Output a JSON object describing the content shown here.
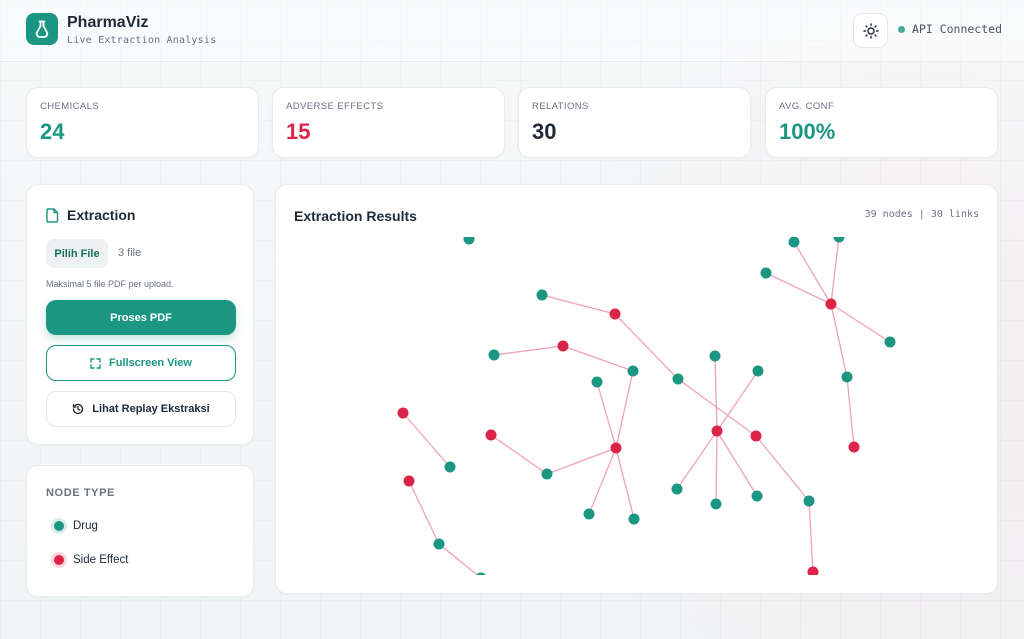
{
  "header": {
    "app_name": "PharmaViz",
    "subtitle": "Live Extraction Analysis",
    "api_status": "API Connected",
    "theme_icon": "sun-icon",
    "logo_icon": "flask-icon"
  },
  "stats": [
    {
      "label": "CHEMICALS",
      "value": "24",
      "color": "#1a9683"
    },
    {
      "label": "ADVERSE EFFECTS",
      "value": "15",
      "color": "#dc2348"
    },
    {
      "label": "RELATIONS",
      "value": "30",
      "color": "#1f2937"
    },
    {
      "label": "AVG. CONF",
      "value": "100%",
      "color": "#1a9683"
    }
  ],
  "extraction": {
    "title": "Extraction",
    "title_icon": "file-icon",
    "choose_file_label": "Pilih File",
    "file_count": "3 file",
    "hint": "Maksimal 5 file PDF per upload.",
    "process_label": "Proses PDF",
    "fullscreen_label": "Fullscreen View",
    "fullscreen_icon": "expand-icon",
    "replay_label": "Lihat Replay Ekstraksi",
    "replay_icon": "history-icon"
  },
  "legend": {
    "title": "NODE TYPE",
    "items": [
      {
        "label": "Drug",
        "color": "#1a9683"
      },
      {
        "label": "Side Effect",
        "color": "#dc2348"
      }
    ]
  },
  "results": {
    "title": "Extraction Results",
    "meta": "39 nodes | 30 links"
  },
  "colors": {
    "accent": "#1a9683",
    "danger": "#dc2348",
    "link": "#f0a3b4"
  }
}
